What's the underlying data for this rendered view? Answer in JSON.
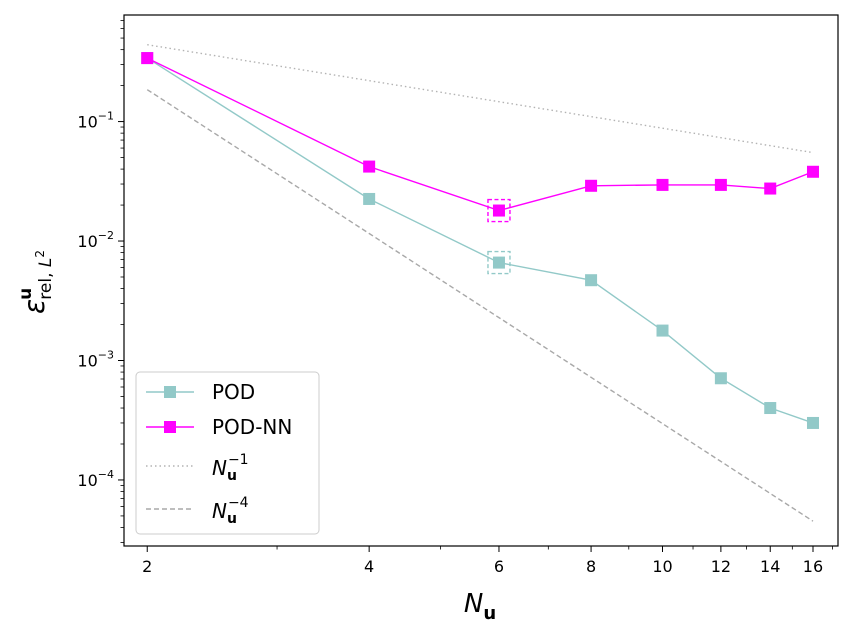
{
  "chart_data": {
    "type": "line",
    "xscale": "log",
    "yscale": "log",
    "x": [
      2,
      4,
      6,
      8,
      10,
      12,
      14,
      16
    ],
    "xlim": [
      1.86,
      17.3
    ],
    "ylim": [
      2.8e-05,
      0.78
    ],
    "xticks": [
      2,
      4,
      6,
      8,
      10,
      12,
      14,
      16
    ],
    "xtick_labels": [
      "2",
      "4",
      "6",
      "8",
      "10",
      "12",
      "14",
      "16"
    ],
    "yticks": [
      0.0001,
      0.001,
      0.01,
      0.1
    ],
    "ytick_labels": [
      {
        "base": "10",
        "exp": "−4"
      },
      {
        "base": "10",
        "exp": "−3"
      },
      {
        "base": "10",
        "exp": "−2"
      },
      {
        "base": "10",
        "exp": "−1"
      }
    ],
    "xlabel": {
      "main": "N",
      "sub": "u"
    },
    "ylabel": {
      "main": "ε",
      "sup": "u",
      "sub": "rel, ",
      "sub2": "L",
      "sub2sup": "2"
    },
    "grid": false,
    "legend_position": "lower-left",
    "series": [
      {
        "name": "POD",
        "color": "#92c9c8",
        "marker": "square",
        "linestyle": "solid",
        "values": [
          0.34,
          0.0225,
          0.0066,
          0.0047,
          0.00178,
          0.00071,
          0.0004,
          0.0003
        ]
      },
      {
        "name": "POD-NN",
        "color": "#ff00ff",
        "marker": "square",
        "linestyle": "solid",
        "values": [
          0.34,
          0.042,
          0.018,
          0.029,
          0.0295,
          0.0295,
          0.0275,
          0.038
        ]
      }
    ],
    "reference_lines": [
      {
        "name": "N_u^-1",
        "color": "#b3b3b3",
        "linestyle": "dotted",
        "x": [
          2,
          16
        ],
        "values": [
          0.44,
          0.055
        ],
        "label": {
          "base": "N",
          "sub": "u",
          "sup": "−1"
        }
      },
      {
        "name": "N_u^-4",
        "color": "#a8a8a8",
        "linestyle": "dashed",
        "x": [
          2,
          16
        ],
        "values": [
          0.185,
          4.52e-05
        ],
        "label": {
          "base": "N",
          "sub": "u",
          "sup": "−4"
        }
      }
    ],
    "highlight_boxes": [
      {
        "series": "POD",
        "x": 6
      },
      {
        "series": "POD-NN",
        "x": 6
      }
    ]
  }
}
